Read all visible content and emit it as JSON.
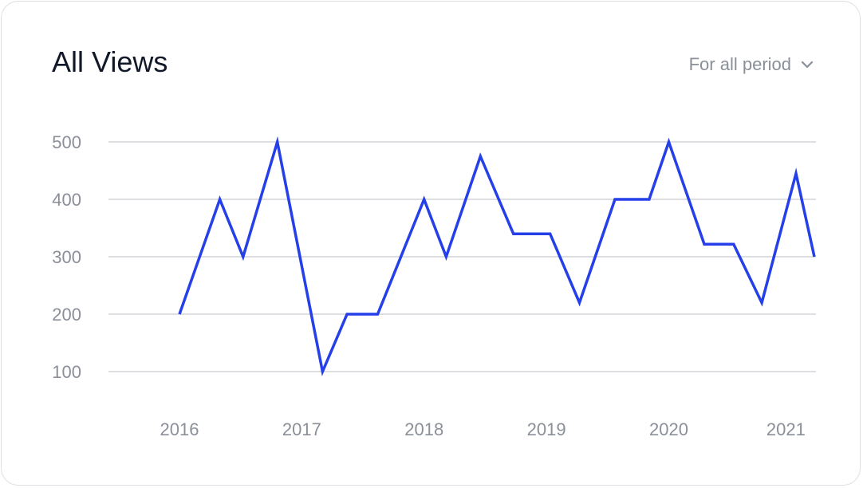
{
  "card": {
    "title": "All Views",
    "period_label": "For all period",
    "period_icon": "chevron-down-icon"
  },
  "colors": {
    "line": "#2540e8",
    "grid": "#d0d3d9",
    "muted_text": "#8a8f98",
    "title": "#111827"
  },
  "chart_data": {
    "type": "line",
    "title": "All Views",
    "xlabel": "",
    "ylabel": "",
    "ylim": [
      100,
      500
    ],
    "yticks": [
      500,
      400,
      300,
      200,
      100
    ],
    "xticks": [
      "2016",
      "2017",
      "2018",
      "2019",
      "2020",
      "2021"
    ],
    "x_range": [
      2016,
      2021.19
    ],
    "grid": true,
    "series": [
      {
        "values": [
          [
            2016.0,
            200
          ],
          [
            2016.33,
            400
          ],
          [
            2016.52,
            300
          ],
          [
            2016.8,
            500
          ],
          [
            2017.17,
            100
          ],
          [
            2017.37,
            200
          ],
          [
            2017.62,
            200
          ],
          [
            2018.0,
            400
          ],
          [
            2018.18,
            300
          ],
          [
            2018.46,
            475
          ],
          [
            2018.73,
            340
          ],
          [
            2019.03,
            340
          ],
          [
            2019.27,
            220
          ],
          [
            2019.56,
            400
          ],
          [
            2019.84,
            400
          ],
          [
            2020.0,
            500
          ],
          [
            2020.29,
            322
          ],
          [
            2020.53,
            322
          ],
          [
            2020.76,
            220
          ],
          [
            2021.04,
            445
          ],
          [
            2021.19,
            300
          ]
        ]
      }
    ]
  }
}
